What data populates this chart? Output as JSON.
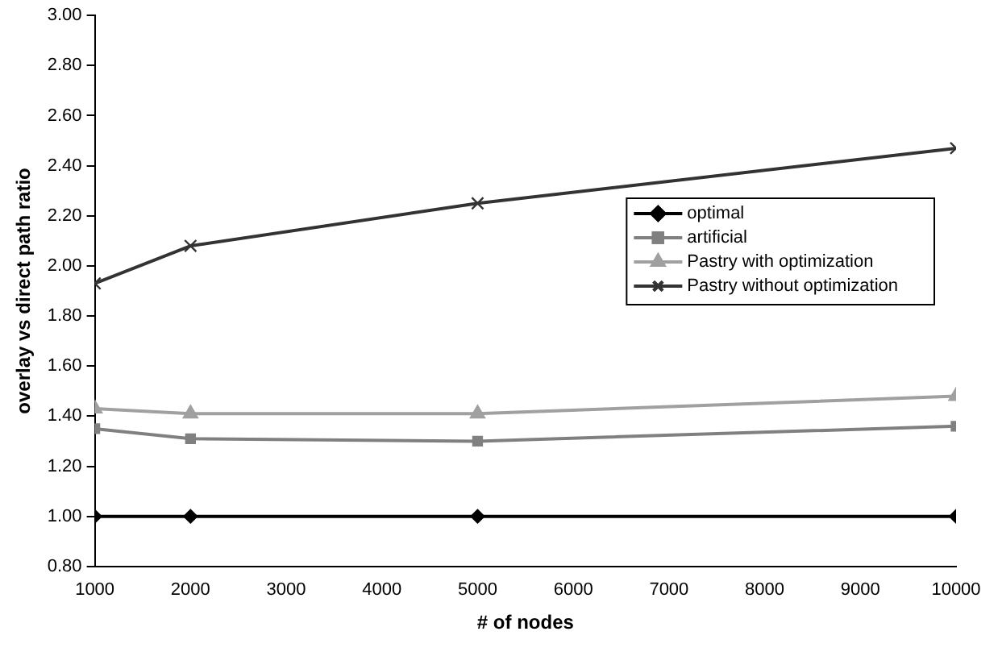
{
  "chart_data": {
    "type": "line",
    "xlabel": "# of nodes",
    "ylabel": "overlay vs direct path ratio",
    "x": [
      1000,
      2000,
      5000,
      10000
    ],
    "series": [
      {
        "name": "optimal",
        "color": "#000000",
        "marker": "diamond",
        "values": [
          1.0,
          1.0,
          1.0,
          1.0
        ]
      },
      {
        "name": "artificial",
        "color": "#808080",
        "marker": "square",
        "values": [
          1.35,
          1.31,
          1.3,
          1.36
        ]
      },
      {
        "name": "Pastry with optimization",
        "color": "#a0a0a0",
        "marker": "triangle",
        "values": [
          1.43,
          1.41,
          1.41,
          1.48
        ]
      },
      {
        "name": "Pastry without optimization",
        "color": "#333333",
        "marker": "cross",
        "values": [
          1.93,
          2.08,
          2.25,
          2.47
        ]
      }
    ],
    "xlim": [
      1000,
      10000
    ],
    "xticks": [
      1000,
      2000,
      3000,
      4000,
      5000,
      6000,
      7000,
      8000,
      9000,
      10000
    ],
    "ylim": [
      0.8,
      3.0
    ],
    "yticks": [
      {
        "value": 0.8,
        "label": "0.80"
      },
      {
        "value": 1.0,
        "label": "1.00"
      },
      {
        "value": 1.2,
        "label": "1.20"
      },
      {
        "value": 1.4,
        "label": "1.40"
      },
      {
        "value": 1.6,
        "label": "1.60"
      },
      {
        "value": 1.8,
        "label": "1.80"
      },
      {
        "value": 2.0,
        "label": "2.00"
      },
      {
        "value": 2.2,
        "label": "2.20"
      },
      {
        "value": 2.4,
        "label": "2.40"
      },
      {
        "value": 2.6,
        "label": "2.60"
      },
      {
        "value": 2.8,
        "label": "2.80"
      },
      {
        "value": 3.0,
        "label": "3.00"
      }
    ],
    "grid": false,
    "legend": "right",
    "line_style": "solid"
  }
}
